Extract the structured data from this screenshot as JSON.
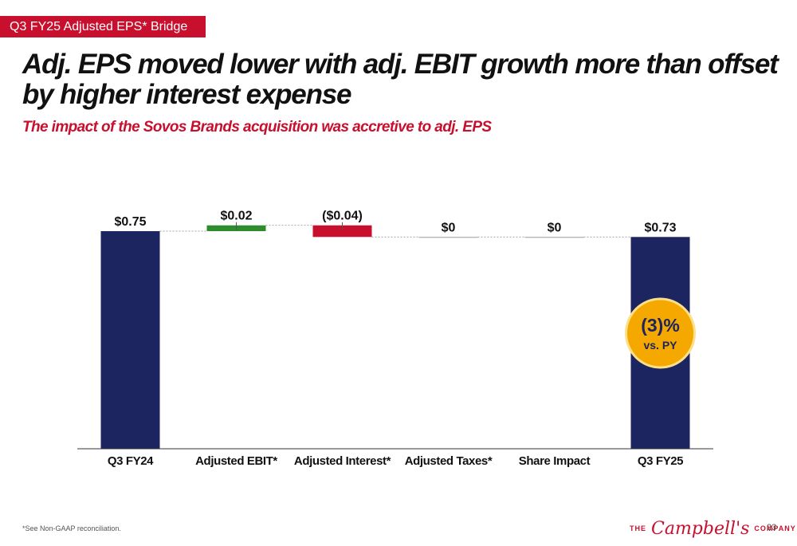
{
  "section_tag": "Q3 FY25 Adjusted EPS* Bridge",
  "headline": "Adj. EPS moved lower with adj. EBIT growth more than offset by higher interest expense",
  "subheadline": "The impact of the Sovos Brands acquisition was accretive to adj. EPS",
  "chart_data": {
    "type": "bar",
    "subtype": "waterfall",
    "categories": [
      "Q3 FY24",
      "Adjusted EBIT*",
      "Adjusted Interest*",
      "Adjusted Taxes*",
      "Share Impact",
      "Q3 FY25"
    ],
    "values": [
      0.75,
      0.02,
      -0.04,
      0,
      0,
      0.73
    ],
    "bar_kinds": [
      "total",
      "delta",
      "delta",
      "delta",
      "delta",
      "total"
    ],
    "data_labels": [
      "$0.75",
      "$0.02",
      "($0.04)",
      "$0",
      "$0",
      "$0.73"
    ],
    "colors": {
      "total": "#1d2561",
      "increase": "#2e8b2e",
      "decrease": "#c8102e",
      "neutral": "#999999"
    },
    "ylim": [
      0,
      0.78
    ],
    "grid": false,
    "callout": {
      "value": "(3)%",
      "label": "vs. PY",
      "color": "#f5a800"
    }
  },
  "footnote": "*See Non-GAAP reconciliation.",
  "logo": {
    "left": "THE",
    "script": "Campbell's",
    "right": "COMPANY"
  },
  "page_number": "23"
}
